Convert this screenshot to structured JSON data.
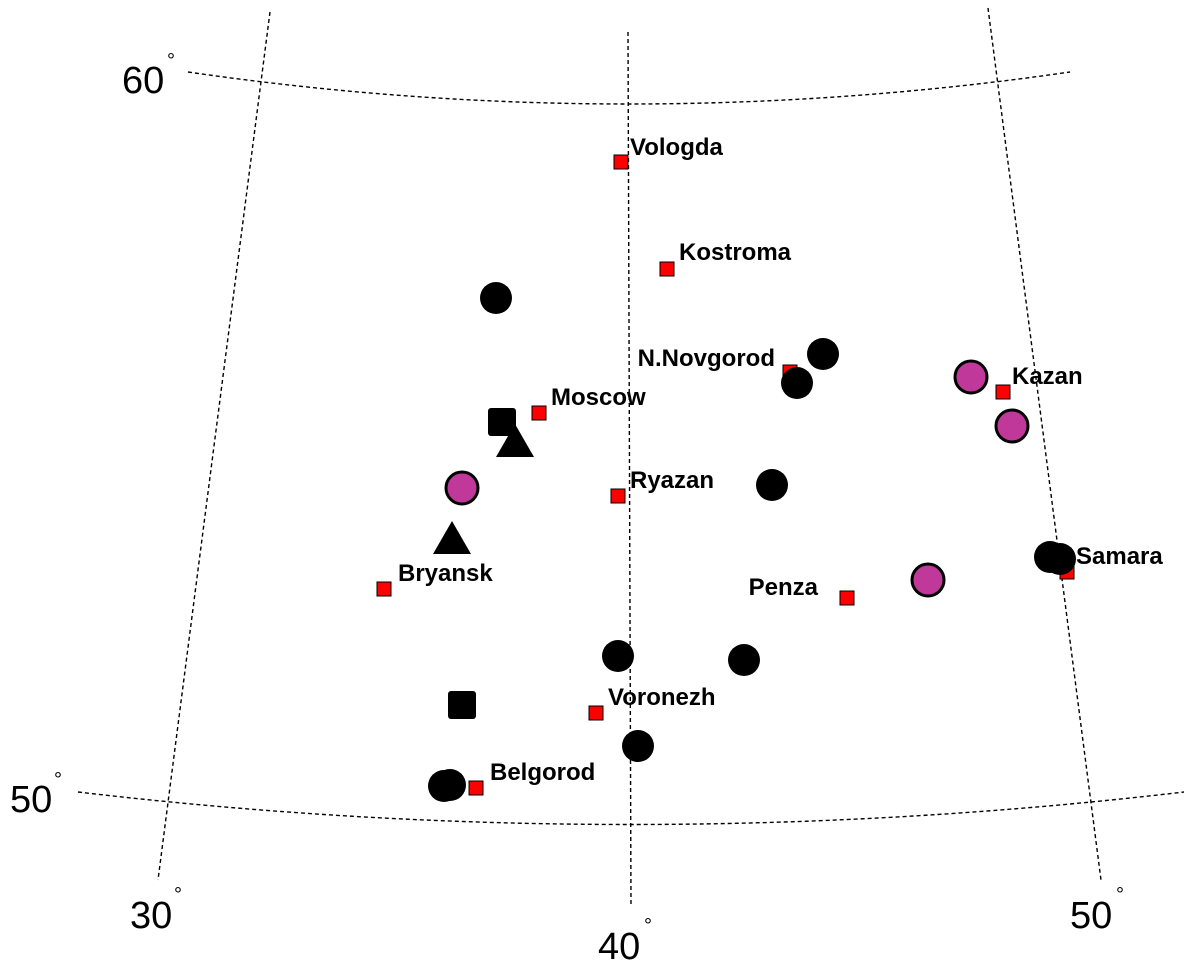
{
  "axes": {
    "lat_labels": [
      {
        "value": "60",
        "unit": "°"
      },
      {
        "value": "50",
        "unit": "°"
      }
    ],
    "lon_labels": [
      {
        "value": "30",
        "unit": "°"
      },
      {
        "value": "40",
        "unit": "°"
      },
      {
        "value": "50",
        "unit": "°"
      }
    ]
  },
  "colors": {
    "city_square": "#ff0000",
    "marker_black": "#000000",
    "marker_magenta": "#c0399a"
  },
  "cities": [
    {
      "name": "Vologda"
    },
    {
      "name": "Kostroma"
    },
    {
      "name": "N.Novgorod"
    },
    {
      "name": "Kazan"
    },
    {
      "name": "Moscow"
    },
    {
      "name": "Ryazan"
    },
    {
      "name": "Samara"
    },
    {
      "name": "Bryansk"
    },
    {
      "name": "Penza"
    },
    {
      "name": "Voronezh"
    },
    {
      "name": "Belgorod"
    }
  ],
  "symbols": [
    {
      "shape": "circle",
      "color": "black"
    },
    {
      "shape": "circle",
      "color": "black"
    },
    {
      "shape": "circle",
      "color": "black"
    },
    {
      "shape": "circle",
      "color": "black"
    },
    {
      "shape": "circle",
      "color": "black"
    },
    {
      "shape": "circle",
      "color": "black"
    },
    {
      "shape": "circle",
      "color": "black"
    },
    {
      "shape": "circle",
      "color": "black"
    },
    {
      "shape": "circle",
      "color": "black"
    },
    {
      "shape": "circle",
      "color": "black"
    },
    {
      "shape": "circle",
      "color": "black"
    },
    {
      "shape": "circle",
      "color": "magenta"
    },
    {
      "shape": "circle",
      "color": "magenta"
    },
    {
      "shape": "circle",
      "color": "magenta"
    },
    {
      "shape": "circle",
      "color": "magenta"
    },
    {
      "shape": "square",
      "color": "black"
    },
    {
      "shape": "square",
      "color": "black"
    },
    {
      "shape": "triangle",
      "color": "black"
    },
    {
      "shape": "triangle",
      "color": "black"
    }
  ]
}
